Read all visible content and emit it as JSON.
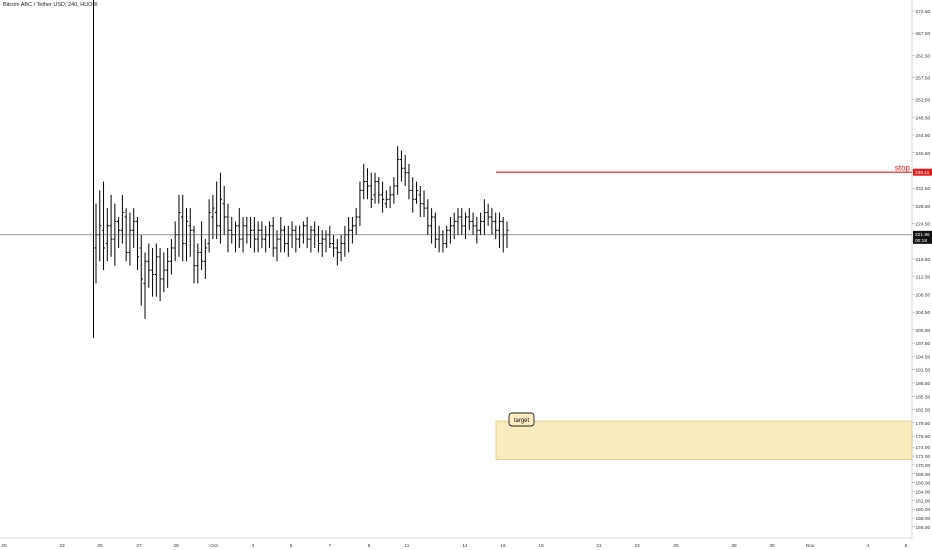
{
  "header": {
    "symbol_title": "Bitcoin ABC / Tether USD, 240, HUOBI"
  },
  "chart_data": {
    "type": "ohlc",
    "title": "Bitcoin ABC / Tether USD, 240, HUOBI",
    "ylim": [
      153.5,
      275
    ],
    "y_ticks": [
      "272.50",
      "267.50",
      "262.50",
      "257.50",
      "252.50",
      "248.50",
      "244.50",
      "240.50",
      "236.50",
      "232.50",
      "228.50",
      "224.50",
      "220.50",
      "216.50",
      "212.50",
      "208.50",
      "204.50",
      "200.50",
      "197.50",
      "194.50",
      "191.50",
      "188.50",
      "185.50",
      "182.50",
      "179.50",
      "176.50",
      "174.00",
      "172.00",
      "170.00",
      "168.00",
      "166.00",
      "164.00",
      "162.00",
      "160.00",
      "158.00",
      "156.00"
    ],
    "x_ticks": [
      "20",
      "23",
      "25",
      "27",
      "29",
      "Oct",
      "3",
      "5",
      "7",
      "9",
      "11",
      "14",
      "16",
      "18",
      "21",
      "23",
      "25",
      "28",
      "30",
      "Nov",
      "4",
      "6"
    ],
    "current_price": {
      "label": "221.96",
      "countdown": "00:18",
      "value": 221.96
    },
    "stop": {
      "label": "stop",
      "value": 236.11,
      "price_label": "236.11",
      "color": "#e01c1c"
    },
    "target_zone": {
      "label": "target",
      "high": 179.9,
      "low": 171.2,
      "fill": "#fbecc0",
      "border": "#e8c87a"
    },
    "grid": false,
    "bar_color": "#000000",
    "series": [
      {
        "values": [
          [
            219,
            229,
            211,
            222
          ],
          [
            222,
            232,
            216,
            224
          ],
          [
            223,
            234,
            214,
            219
          ],
          [
            220,
            228,
            216,
            224
          ],
          [
            224,
            231,
            217,
            221
          ],
          [
            221,
            229,
            215,
            225
          ],
          [
            225,
            226,
            219,
            223
          ],
          [
            223,
            231,
            220,
            227
          ],
          [
            226,
            228,
            216,
            218
          ],
          [
            218,
            227,
            215,
            223
          ],
          [
            223,
            228,
            219,
            225
          ],
          [
            225,
            226,
            214,
            217
          ],
          [
            219,
            222,
            206,
            212
          ],
          [
            211,
            218,
            203,
            216
          ],
          [
            216,
            220,
            210,
            214
          ],
          [
            214,
            219,
            208,
            213
          ],
          [
            213,
            220,
            208,
            217
          ],
          [
            217,
            219,
            207,
            212
          ],
          [
            212,
            218,
            209,
            214
          ],
          [
            214,
            219,
            210,
            216
          ],
          [
            216,
            221,
            213,
            219
          ],
          [
            219,
            225,
            216,
            222
          ],
          [
            222,
            231,
            217,
            227
          ],
          [
            226,
            231,
            216,
            220
          ],
          [
            220,
            228,
            216,
            225
          ],
          [
            224,
            228,
            217,
            223
          ],
          [
            223,
            224,
            211,
            215
          ],
          [
            215,
            220,
            211,
            218
          ],
          [
            218,
            225,
            214,
            216
          ],
          [
            216,
            221,
            212,
            219
          ],
          [
            220,
            230,
            218,
            227
          ],
          [
            226,
            231,
            221,
            228
          ],
          [
            227,
            234,
            221,
            224
          ],
          [
            224,
            236,
            220,
            230
          ],
          [
            229,
            233,
            222,
            226
          ],
          [
            226,
            229,
            218,
            223
          ],
          [
            223,
            226,
            220,
            222
          ],
          [
            222,
            225,
            218,
            224
          ],
          [
            224,
            228,
            219,
            221
          ],
          [
            221,
            226,
            218,
            224
          ],
          [
            224,
            226,
            220,
            222
          ],
          [
            222,
            226,
            219,
            223
          ],
          [
            223,
            226,
            218,
            221
          ],
          [
            221,
            225,
            218,
            223
          ],
          [
            223,
            225,
            219,
            221
          ],
          [
            221,
            224,
            218,
            222
          ],
          [
            222,
            225,
            219,
            224
          ],
          [
            224,
            226,
            217,
            219
          ],
          [
            219,
            223,
            216,
            221
          ],
          [
            221,
            226,
            218,
            223
          ],
          [
            223,
            224,
            218,
            220
          ],
          [
            220,
            224,
            217,
            222
          ],
          [
            222,
            225,
            219,
            223
          ],
          [
            223,
            224,
            218,
            221
          ],
          [
            221,
            224,
            219,
            222
          ],
          [
            222,
            225,
            220,
            224
          ],
          [
            224,
            226,
            219,
            221
          ],
          [
            221,
            224,
            218,
            223
          ],
          [
            223,
            225,
            219,
            222
          ],
          [
            222,
            224,
            218,
            220
          ],
          [
            220,
            223,
            217,
            221
          ],
          [
            221,
            223,
            218,
            222
          ],
          [
            222,
            224,
            219,
            220
          ],
          [
            220,
            222,
            217,
            219
          ],
          [
            219,
            221,
            215,
            218
          ],
          [
            218,
            222,
            216,
            220
          ],
          [
            220,
            224,
            217,
            222
          ],
          [
            222,
            226,
            218,
            223
          ],
          [
            223,
            226,
            220,
            224
          ],
          [
            224,
            228,
            222,
            226
          ],
          [
            226,
            234,
            224,
            232
          ],
          [
            232,
            238,
            230,
            234
          ],
          [
            234,
            237,
            230,
            233
          ],
          [
            233,
            236,
            228,
            230
          ],
          [
            231,
            236,
            229,
            234
          ],
          [
            234,
            235,
            229,
            231
          ],
          [
            231,
            234,
            227,
            230
          ],
          [
            229,
            232,
            228,
            230
          ],
          [
            230,
            233,
            228,
            231
          ],
          [
            231,
            235,
            229,
            233
          ],
          [
            233,
            242,
            231,
            239
          ],
          [
            239,
            241,
            234,
            237
          ],
          [
            237,
            240,
            233,
            236
          ],
          [
            236,
            238,
            230,
            232
          ],
          [
            232,
            235,
            227,
            230
          ],
          [
            230,
            234,
            229,
            232
          ],
          [
            231,
            233,
            226,
            229
          ],
          [
            229,
            232,
            226,
            228
          ],
          [
            228,
            230,
            222,
            224
          ],
          [
            224,
            228,
            220,
            226
          ],
          [
            226,
            227,
            219,
            221
          ],
          [
            221,
            224,
            218,
            222
          ],
          [
            222,
            223,
            218,
            220
          ],
          [
            220,
            224,
            219,
            223
          ],
          [
            223,
            226,
            220,
            224
          ],
          [
            224,
            227,
            221,
            225
          ],
          [
            225,
            228,
            222,
            226
          ],
          [
            226,
            228,
            222,
            224
          ],
          [
            224,
            227,
            221,
            226
          ],
          [
            226,
            228,
            223,
            225
          ],
          [
            225,
            227,
            222,
            224
          ],
          [
            224,
            226,
            220,
            223
          ],
          [
            223,
            227,
            222,
            225
          ],
          [
            225,
            230,
            222,
            227
          ],
          [
            227,
            229,
            224,
            226
          ],
          [
            226,
            228,
            222,
            225
          ],
          [
            225,
            227,
            221,
            223
          ],
          [
            223,
            227,
            219,
            225
          ],
          [
            225,
            226,
            218,
            222
          ],
          [
            222,
            225,
            219,
            223
          ]
        ]
      }
    ]
  }
}
